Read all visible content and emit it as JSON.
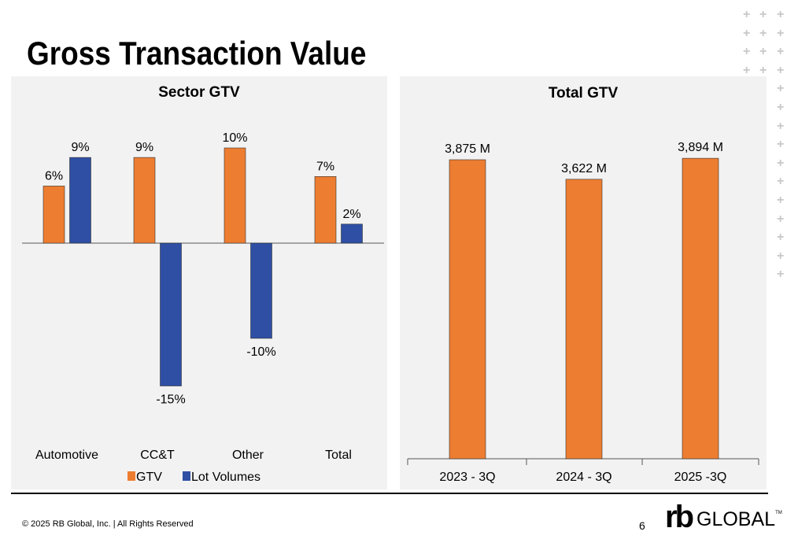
{
  "title": "Gross Transaction Value",
  "footer": {
    "copyright": "© 2025 RB Global, Inc. | All Rights Reserved",
    "page": "6",
    "logo": "rb GLOBAL™"
  },
  "colors": {
    "orange": "#ed7d31",
    "blue": "#2e4fa3",
    "panel": "#f2f2f2"
  },
  "chart_data": [
    {
      "type": "bar",
      "title": "Sector GTV",
      "categories": [
        "Automotive",
        "CC&T",
        "Other",
        "Total"
      ],
      "series": [
        {
          "name": "GTV",
          "values": [
            6,
            9,
            10,
            7
          ],
          "labels": [
            "6%",
            "9%",
            "10%",
            "7%"
          ]
        },
        {
          "name": "Lot Volumes",
          "values": [
            9,
            -15,
            -10,
            2
          ],
          "labels": [
            "9%",
            "-15%",
            "-10%",
            "2%"
          ]
        }
      ],
      "legend": "bottom",
      "grid": false
    },
    {
      "type": "bar",
      "title": "Total GTV",
      "categories": [
        "2023 - 3Q",
        "2024 - 3Q",
        "2025 -3Q"
      ],
      "values": [
        3875,
        3622,
        3894
      ],
      "labels": [
        "3,875 M",
        "3,622 M",
        "3,894 M"
      ],
      "ylim": [
        0,
        3894
      ],
      "grid": false
    }
  ]
}
